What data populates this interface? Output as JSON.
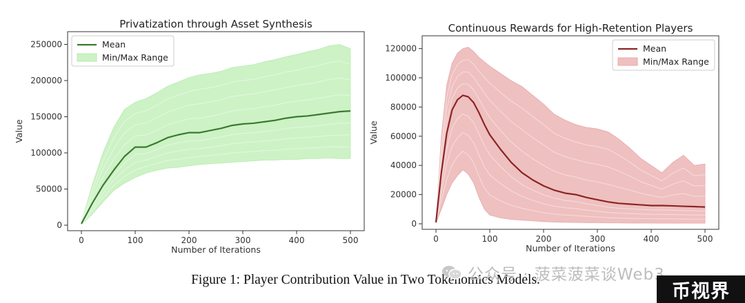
{
  "chart_data": [
    {
      "type": "area",
      "title": "Privatization through Asset Synthesis",
      "xlabel": "Number of Iterations",
      "ylabel": "Value",
      "xlim": [
        0,
        500
      ],
      "ylim": [
        0,
        260000
      ],
      "xticks": [
        0,
        100,
        200,
        300,
        400,
        500
      ],
      "yticks": [
        0,
        50000,
        100000,
        150000,
        200000,
        250000
      ],
      "legend_position": "top-left",
      "grid": false,
      "colors": {
        "band": "#cdf2c6",
        "band_edge": "#b6ebae",
        "mean": "#3b7a30",
        "spaghetti": "#e6f9e2"
      },
      "x": [
        0,
        20,
        40,
        60,
        80,
        100,
        120,
        140,
        160,
        180,
        200,
        220,
        240,
        260,
        280,
        300,
        320,
        340,
        360,
        380,
        400,
        420,
        440,
        460,
        480,
        500
      ],
      "series": [
        {
          "name": "Mean",
          "role": "line",
          "values": [
            2000,
            30000,
            55000,
            76000,
            95000,
            108000,
            108000,
            114000,
            121000,
            125000,
            128000,
            128000,
            131000,
            134000,
            138000,
            140000,
            141000,
            143000,
            145000,
            148000,
            150000,
            151000,
            153000,
            155000,
            157000,
            158000
          ]
        },
        {
          "name": "Min/Max Range",
          "role": "band",
          "upper": [
            4000,
            55000,
            100000,
            135000,
            160000,
            170000,
            175000,
            183000,
            192000,
            198000,
            204000,
            208000,
            210000,
            213000,
            218000,
            220000,
            222000,
            226000,
            229000,
            233000,
            236000,
            240000,
            243000,
            248000,
            250000,
            244000
          ],
          "lower": [
            1000,
            15000,
            32000,
            48000,
            58000,
            66000,
            72000,
            76000,
            79000,
            80000,
            82000,
            84000,
            85000,
            86000,
            87000,
            88000,
            89000,
            90000,
            90000,
            91000,
            91000,
            92000,
            92000,
            93000,
            92000,
            92000
          ]
        }
      ]
    },
    {
      "type": "area",
      "title": "Continuous Rewards for High-Retention Players",
      "xlabel": "Number of Iterations",
      "ylabel": "Value",
      "xlim": [
        0,
        500
      ],
      "ylim": [
        0,
        125000
      ],
      "xticks": [
        0,
        100,
        200,
        300,
        400,
        500
      ],
      "yticks": [
        0,
        20000,
        40000,
        60000,
        80000,
        100000,
        120000
      ],
      "legend_position": "top-right",
      "grid": false,
      "colors": {
        "band": "#efc0c0",
        "band_edge": "#e8aaaa",
        "mean": "#8b2424",
        "spaghetti": "#f7e0e0"
      },
      "x": [
        0,
        10,
        20,
        30,
        40,
        50,
        60,
        70,
        80,
        90,
        100,
        120,
        140,
        160,
        180,
        200,
        220,
        240,
        260,
        280,
        300,
        320,
        340,
        360,
        380,
        400,
        420,
        440,
        460,
        480,
        500
      ],
      "series": [
        {
          "name": "Mean",
          "role": "line",
          "values": [
            1000,
            35000,
            62000,
            78000,
            85000,
            88000,
            87000,
            83000,
            76000,
            68000,
            61000,
            51000,
            42000,
            35000,
            30000,
            26000,
            23000,
            21000,
            20000,
            18000,
            16500,
            15000,
            14000,
            13500,
            13000,
            12500,
            12500,
            12300,
            12000,
            11800,
            11500
          ]
        },
        {
          "name": "Min/Max Range",
          "role": "band",
          "upper": [
            2000,
            60000,
            95000,
            110000,
            117000,
            120000,
            121000,
            118000,
            114000,
            111000,
            108000,
            103000,
            98000,
            94000,
            88000,
            82000,
            75000,
            71000,
            68000,
            66000,
            65000,
            63000,
            58000,
            52000,
            45000,
            40000,
            35000,
            42000,
            47000,
            40000,
            41000
          ],
          "lower": [
            500,
            10000,
            20000,
            28000,
            33000,
            37000,
            34000,
            28000,
            18000,
            10000,
            6000,
            4000,
            3000,
            2500,
            2000,
            1500,
            1200,
            1000,
            900,
            800,
            700,
            600,
            600,
            500,
            500,
            500,
            400,
            400,
            400,
            400,
            400
          ]
        }
      ]
    }
  ],
  "caption": "Figure 1: Player Contribution Value in Two Tokenomics Models.",
  "watermark": "公众号 · 菠菜菠菜谈Web3",
  "badge": "币视界"
}
